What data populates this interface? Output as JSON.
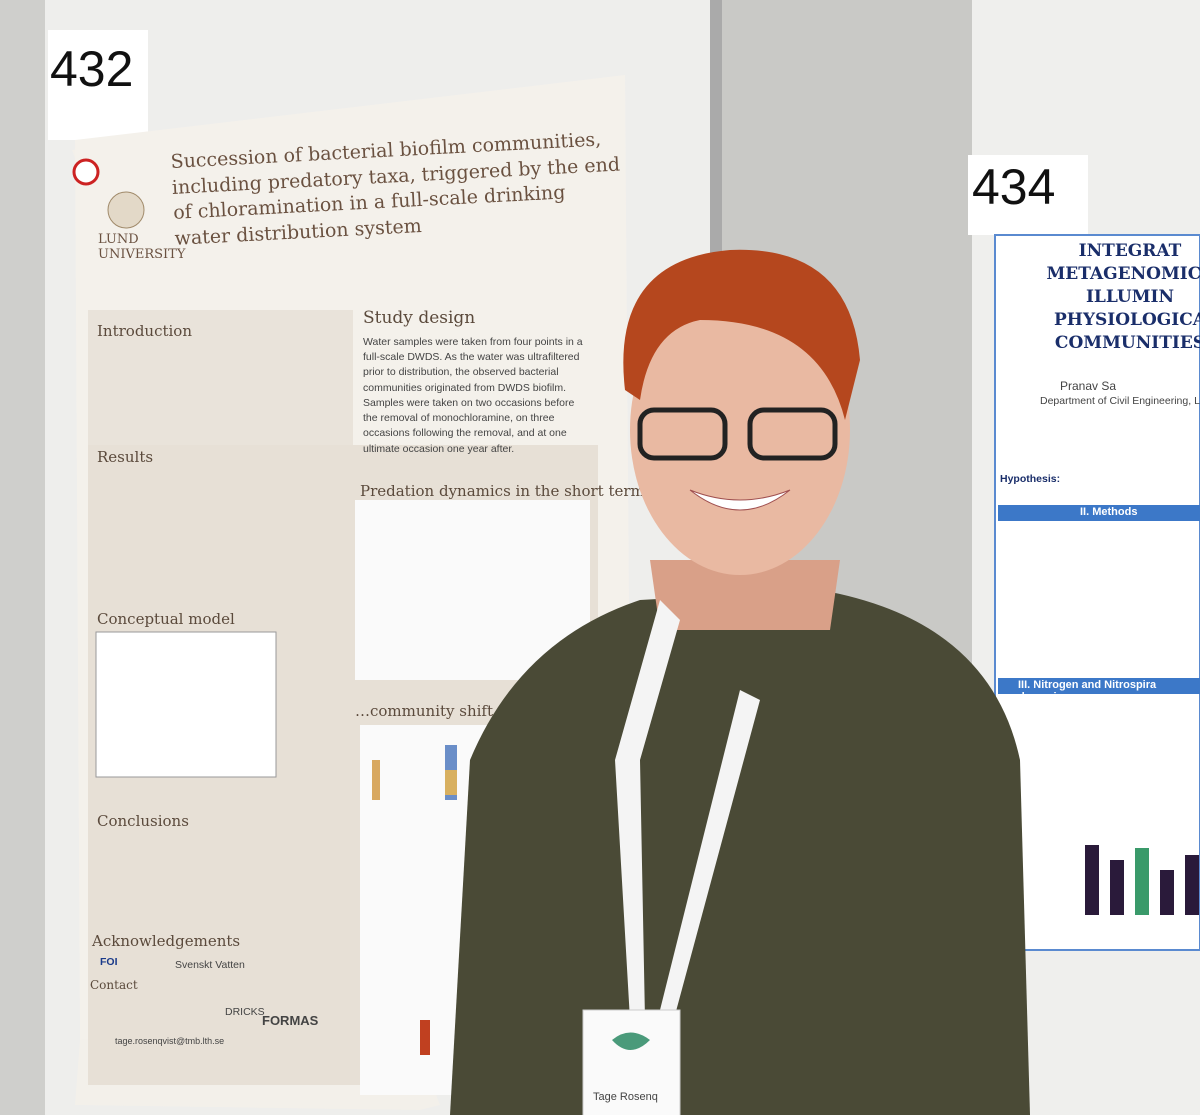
{
  "posters": [
    {
      "number": "432",
      "title": "Succession of bacterial biofilm communities, including predatory taxa, triggered by the end of chloramination in a full-scale drinking water distribution system",
      "institution": "LUND UNIVERSITY",
      "sections": {
        "introduction": "Introduction",
        "study_design": "Study design",
        "results": "Results",
        "conceptual_model": "Conceptual model",
        "conclusions": "Conclusions",
        "acknowledgements": "Acknowledgements",
        "contact": "Contact"
      },
      "study_design_text": "Water samples were taken from four points in a full-scale DWDS. As the water was ultrafiltered prior to distribution, the observed bacterial communities originated from DWDS biofilm. Samples were taken on two occasions before the removal of monochloramine, on three occasions following the removal, and at one ultimate occasion one year after.",
      "chart_headings": [
        "Predation dynamics in the short term…",
        "…community shift in the long"
      ],
      "sponsors": [
        "FOI",
        "Svenskt Vatten",
        "DRICKS",
        "FORMAS"
      ],
      "email": "tage.rosenqvist@tmb.lth.se"
    },
    {
      "number": "434",
      "title_lines": [
        "INTEGRAT",
        "METAGENOMICS",
        "ILLUMIN",
        "PHYSIOLOGICA",
        "COMMUNITIES"
      ],
      "author": "Pranav Sa",
      "affiliation": "Department of Civil Engineering, L",
      "hypothesis": "Hypothesis:",
      "sections": [
        "II. Methods",
        "III. Nitrogen and Nitrospira dynamic"
      ]
    }
  ],
  "badge": {
    "name": "Tage Rosenq"
  }
}
